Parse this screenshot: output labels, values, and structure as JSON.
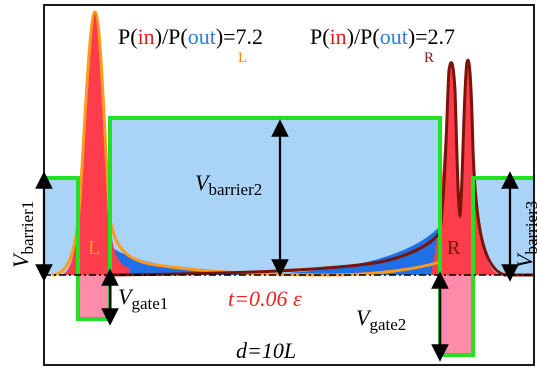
{
  "ratios": {
    "left": {
      "prefix": "P(",
      "in": "in",
      "mid": ")/P(",
      "out": "out",
      "suffix": ")=7.2",
      "sub": "L"
    },
    "right": {
      "prefix": "P(",
      "in": "in",
      "mid": ")/P(",
      "out": "out",
      "suffix": ")=2.7",
      "sub": "R"
    }
  },
  "labels": {
    "v": "V",
    "barrier1": "barrier1",
    "barrier2": "barrier2",
    "barrier3": "barrier3",
    "gate1": "gate1",
    "gate2": "gate2",
    "dot_left": "L",
    "dot_right": "R",
    "time": "t=0.06 ε",
    "length": "d=10L"
  },
  "colors": {
    "barrier_fill": "#aad4f7",
    "barrier_edge": "#22e022",
    "gate_fill": "#ff8bab",
    "density_fill": "#ff3c4c",
    "tail_fill": "#1f6fe6",
    "left_curve": "#ff9a1e",
    "right_curve": "#7a1408",
    "in_text": "#e01c1c",
    "out_text": "#2a7fe0",
    "time_text": "#ee2222",
    "sub_left": "#ff8800",
    "sub_right": "#8b1a1a"
  }
}
